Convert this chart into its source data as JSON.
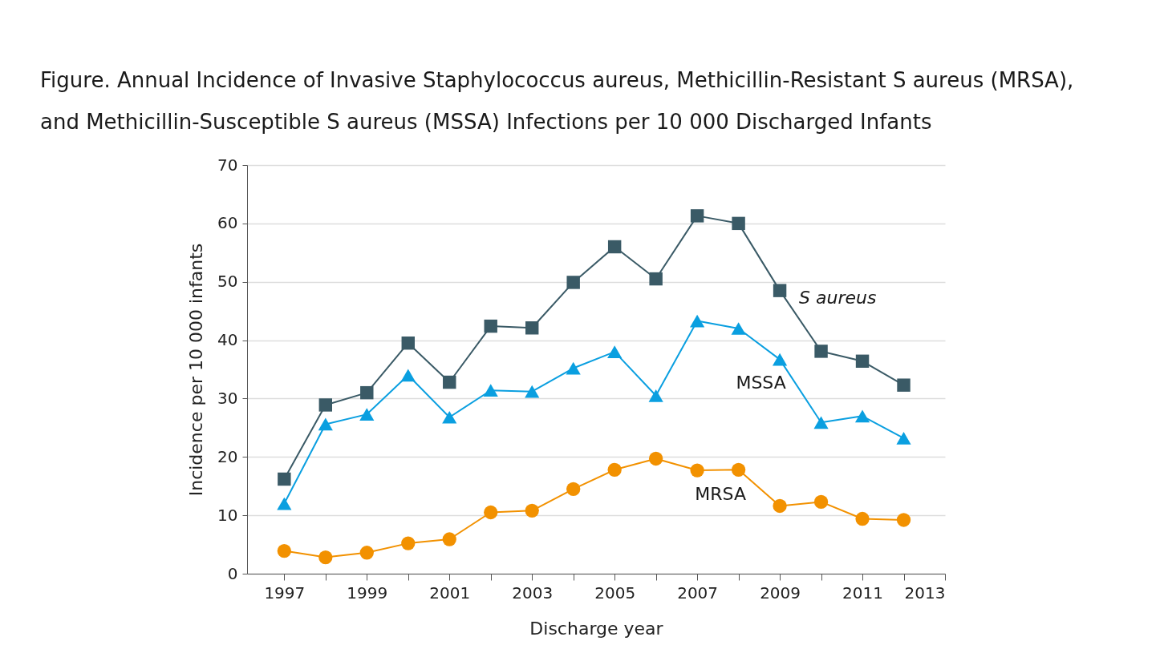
{
  "chart_data": {
    "type": "line",
    "title": "Figure. Annual Incidence of Invasive Staphylococcus aureus, Methicillin-Resistant S aureus (MRSA), and Methicillin-Susceptible S aureus (MSSA) Infections per 10 000 Discharged Infants",
    "xlabel": "Discharge year",
    "ylabel": "Incidence per 10 000 infants",
    "x": [
      1997,
      1998,
      1999,
      2000,
      2001,
      2002,
      2003,
      2004,
      2005,
      2006,
      2007,
      2008,
      2009,
      2010,
      2011,
      2012
    ],
    "series": [
      {
        "name": "S aureus",
        "color": "#3a5a66",
        "marker": "square",
        "line_style": "solid",
        "values": [
          16.2,
          28.9,
          31.0,
          39.5,
          32.8,
          42.4,
          42.1,
          49.9,
          56.0,
          50.5,
          61.3,
          60.0,
          48.5,
          38.1,
          36.4,
          32.3
        ]
      },
      {
        "name": "MSSA",
        "color": "#0a9fe0",
        "marker": "triangle",
        "line_style": "solid",
        "values": [
          12.0,
          25.6,
          27.3,
          34.0,
          26.8,
          31.4,
          31.2,
          35.2,
          38.0,
          30.5,
          43.3,
          42.0,
          36.7,
          25.9,
          27.0,
          23.2
        ]
      },
      {
        "name": "MRSA",
        "color": "#f29100",
        "marker": "circle",
        "line_style": "solid",
        "values": [
          3.9,
          2.8,
          3.6,
          5.2,
          5.9,
          10.5,
          10.8,
          14.5,
          17.8,
          19.7,
          17.7,
          17.8,
          11.6,
          12.3,
          9.4,
          9.2
        ]
      }
    ],
    "xlim": [
      1996.1,
      2013
    ],
    "xticks": [
      1997,
      {
        "value": 1998,
        "label": null
      },
      1999,
      {
        "value": 2000,
        "label": null
      },
      2001,
      {
        "value": 2002,
        "label": null
      },
      2003,
      {
        "value": 2004,
        "label": null
      },
      2005,
      {
        "value": 2006,
        "label": null
      },
      2007,
      {
        "value": 2008,
        "label": null
      },
      2009,
      {
        "value": 2010,
        "label": null
      },
      2011,
      {
        "value": 2012,
        "label": null
      },
      2013
    ],
    "ylim": [
      0,
      70
    ],
    "yticks": [
      0,
      10,
      20,
      30,
      40,
      50,
      60,
      70
    ],
    "grid": "y"
  }
}
